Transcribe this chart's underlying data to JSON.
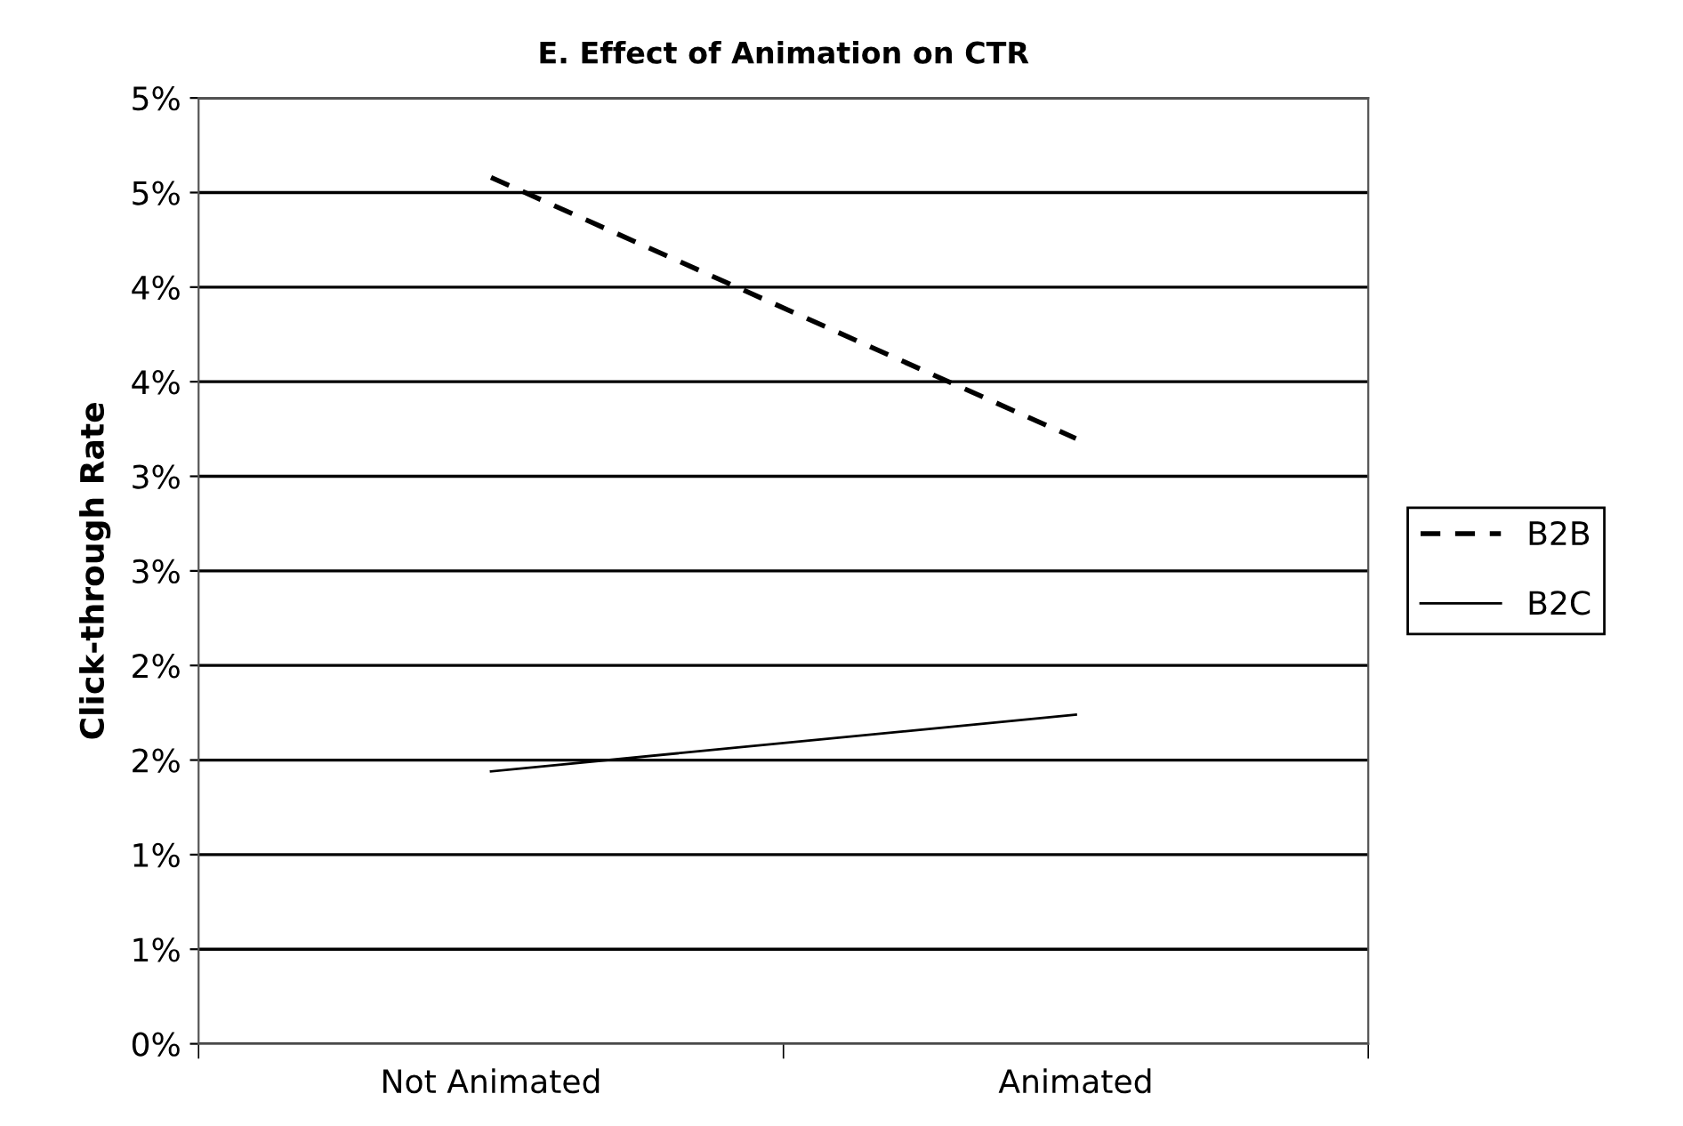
{
  "chart_data": {
    "type": "line",
    "title": "E. Effect of Animation on CTR",
    "ylabel": "Click-through Rate",
    "categories": [
      "Not Animated",
      "Animated"
    ],
    "series": [
      {
        "name": "B2B",
        "color": "#000000",
        "values": [
          4.58,
          3.2
        ],
        "line_style": "dashed"
      },
      {
        "name": "B2C",
        "color": "#000000",
        "values": [
          1.44,
          1.74
        ],
        "line_style": "solid"
      }
    ],
    "ylim": [
      0,
      5
    ],
    "yticks": [
      {
        "value": 0,
        "label": "0%"
      },
      {
        "value": 0.5,
        "label": "1%"
      },
      {
        "value": 1,
        "label": "1%"
      },
      {
        "value": 1.5,
        "label": "2%"
      },
      {
        "value": 2,
        "label": "2%"
      },
      {
        "value": 2.5,
        "label": "3%"
      },
      {
        "value": 3,
        "label": "3%"
      },
      {
        "value": 3.5,
        "label": "4%"
      },
      {
        "value": 4,
        "label": "4%"
      },
      {
        "value": 4.5,
        "label": "5%"
      },
      {
        "value": 5,
        "label": "5%"
      }
    ],
    "grid": "y",
    "legend": "right",
    "marker": "none"
  }
}
